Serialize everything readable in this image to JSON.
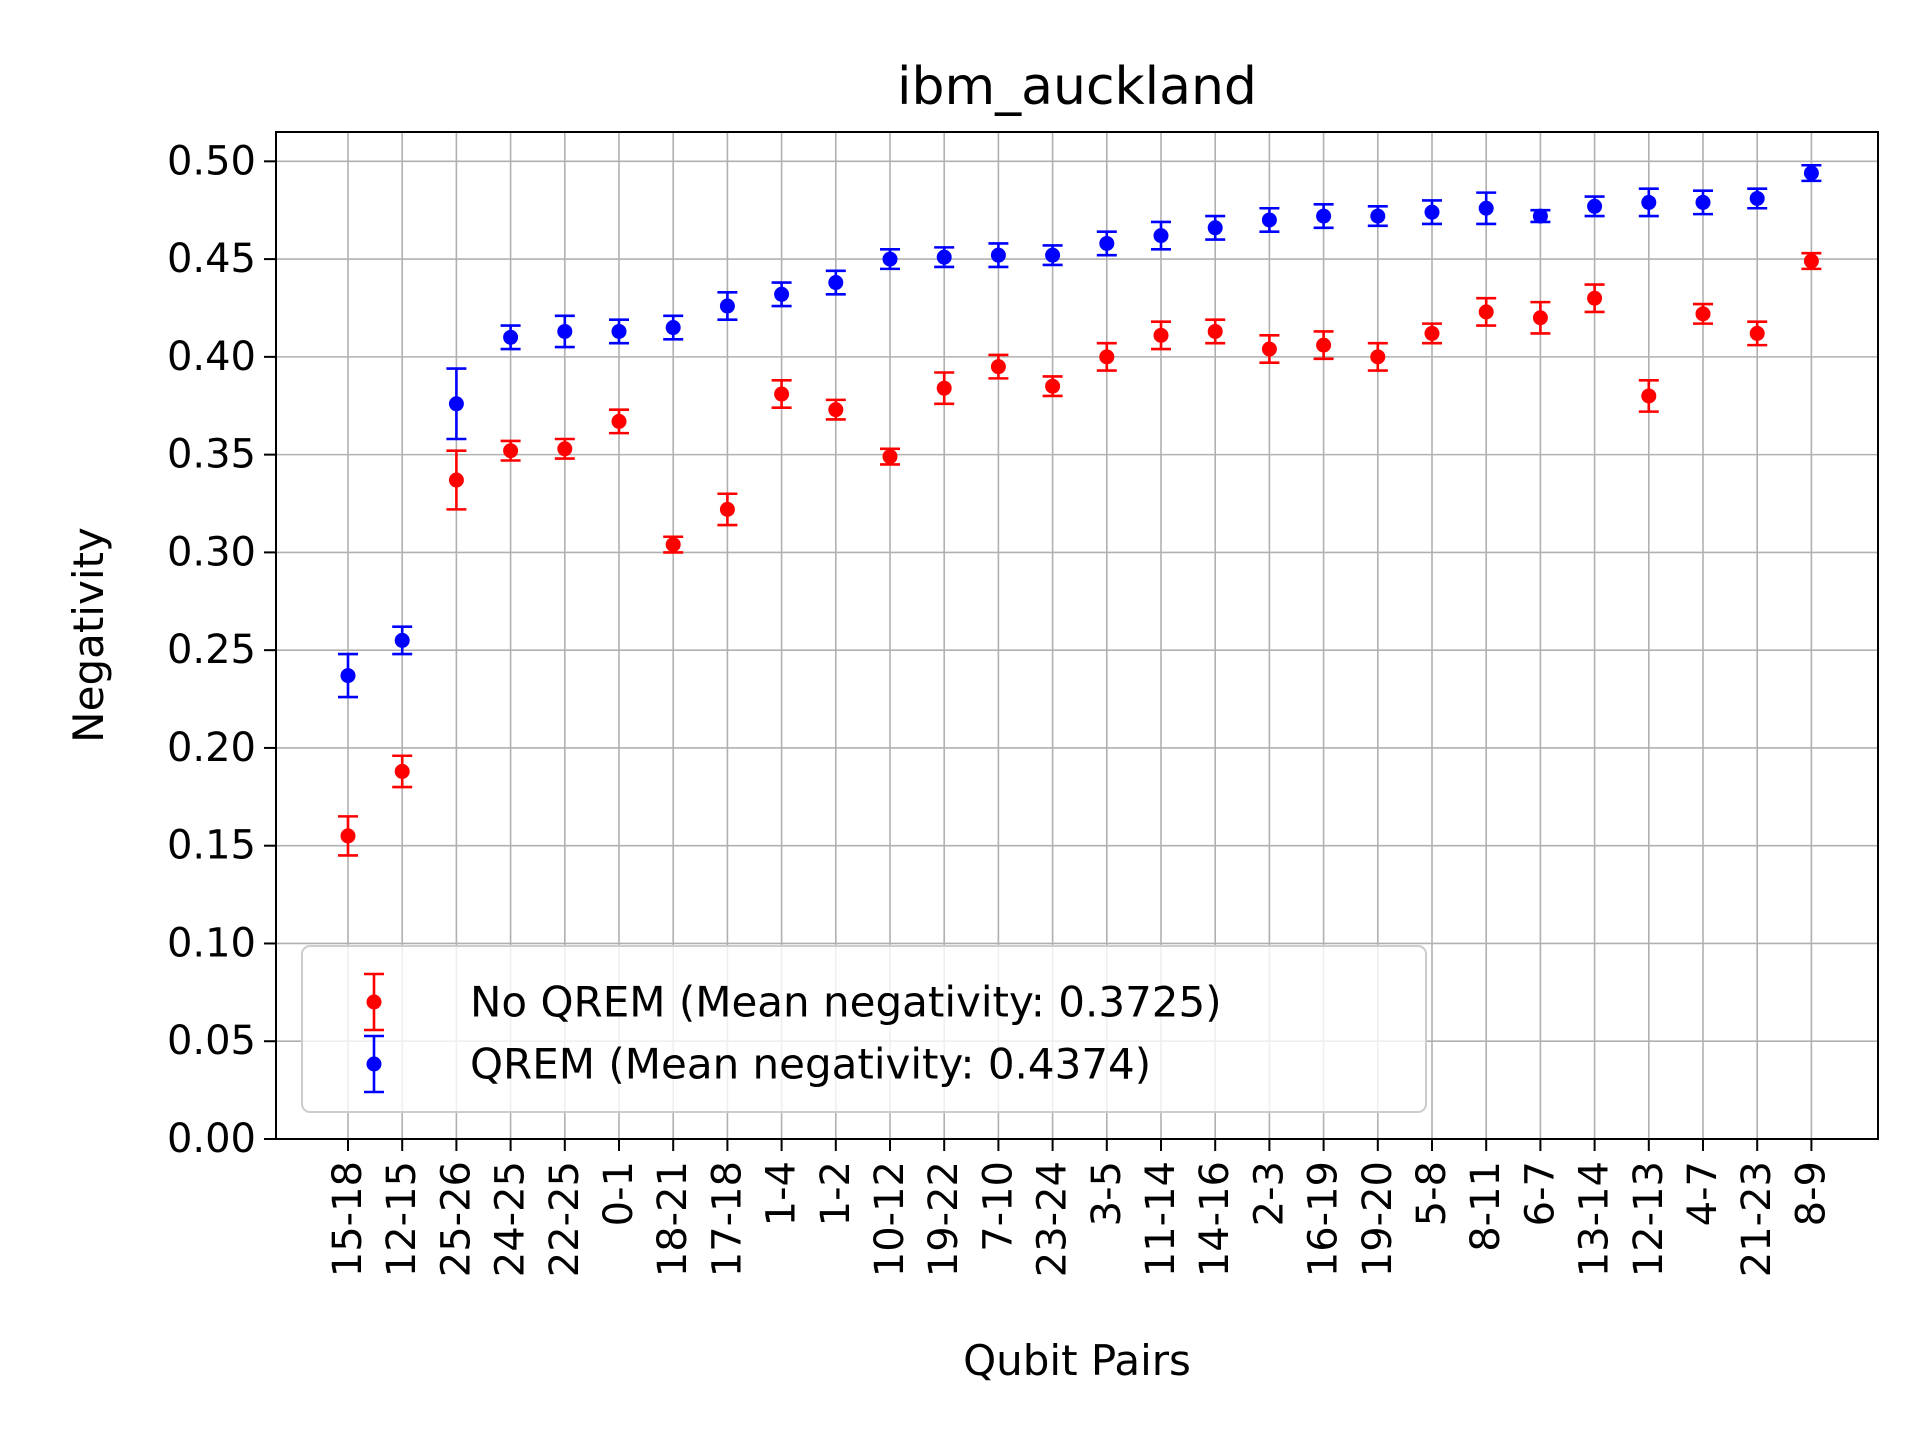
{
  "chart_data": {
    "type": "scatter",
    "title": "ibm_auckland",
    "xlabel": "Qubit Pairs",
    "ylabel": "Negativity",
    "ylim": [
      0.0,
      0.515
    ],
    "yticks": [
      "0.00",
      "0.05",
      "0.10",
      "0.15",
      "0.20",
      "0.25",
      "0.30",
      "0.35",
      "0.40",
      "0.45",
      "0.50"
    ],
    "grid": true,
    "legend_position": "lower-left",
    "categories": [
      "15-18",
      "12-15",
      "25-26",
      "24-25",
      "22-25",
      "0-1",
      "18-21",
      "17-18",
      "1-4",
      "1-2",
      "10-12",
      "19-22",
      "7-10",
      "23-24",
      "3-5",
      "11-14",
      "14-16",
      "2-3",
      "16-19",
      "19-20",
      "5-8",
      "8-11",
      "6-7",
      "13-14",
      "12-13",
      "4-7",
      "21-23",
      "8-9"
    ],
    "series": [
      {
        "name": "No QREM (Mean negativity: 0.3725)",
        "color": "#ff0000",
        "values": [
          0.155,
          0.188,
          0.337,
          0.352,
          0.353,
          0.367,
          0.304,
          0.322,
          0.381,
          0.373,
          0.349,
          0.384,
          0.395,
          0.385,
          0.4,
          0.411,
          0.413,
          0.404,
          0.406,
          0.4,
          0.412,
          0.423,
          0.42,
          0.43,
          0.38,
          0.422,
          0.412,
          0.449
        ],
        "errors": [
          0.01,
          0.008,
          0.015,
          0.005,
          0.005,
          0.006,
          0.004,
          0.008,
          0.007,
          0.005,
          0.004,
          0.008,
          0.006,
          0.005,
          0.007,
          0.007,
          0.006,
          0.007,
          0.007,
          0.007,
          0.005,
          0.007,
          0.008,
          0.007,
          0.008,
          0.005,
          0.006,
          0.004
        ]
      },
      {
        "name": "QREM (Mean negativity: 0.4374)",
        "color": "#0000ff",
        "values": [
          0.237,
          0.255,
          0.376,
          0.41,
          0.413,
          0.413,
          0.415,
          0.426,
          0.432,
          0.438,
          0.45,
          0.451,
          0.452,
          0.452,
          0.458,
          0.462,
          0.466,
          0.47,
          0.472,
          0.472,
          0.474,
          0.476,
          0.472,
          0.477,
          0.479,
          0.479,
          0.481,
          0.494
        ],
        "errors": [
          0.011,
          0.007,
          0.018,
          0.006,
          0.008,
          0.006,
          0.006,
          0.007,
          0.006,
          0.006,
          0.005,
          0.005,
          0.006,
          0.005,
          0.006,
          0.007,
          0.006,
          0.006,
          0.006,
          0.005,
          0.006,
          0.008,
          0.003,
          0.005,
          0.007,
          0.006,
          0.005,
          0.004
        ]
      }
    ]
  }
}
